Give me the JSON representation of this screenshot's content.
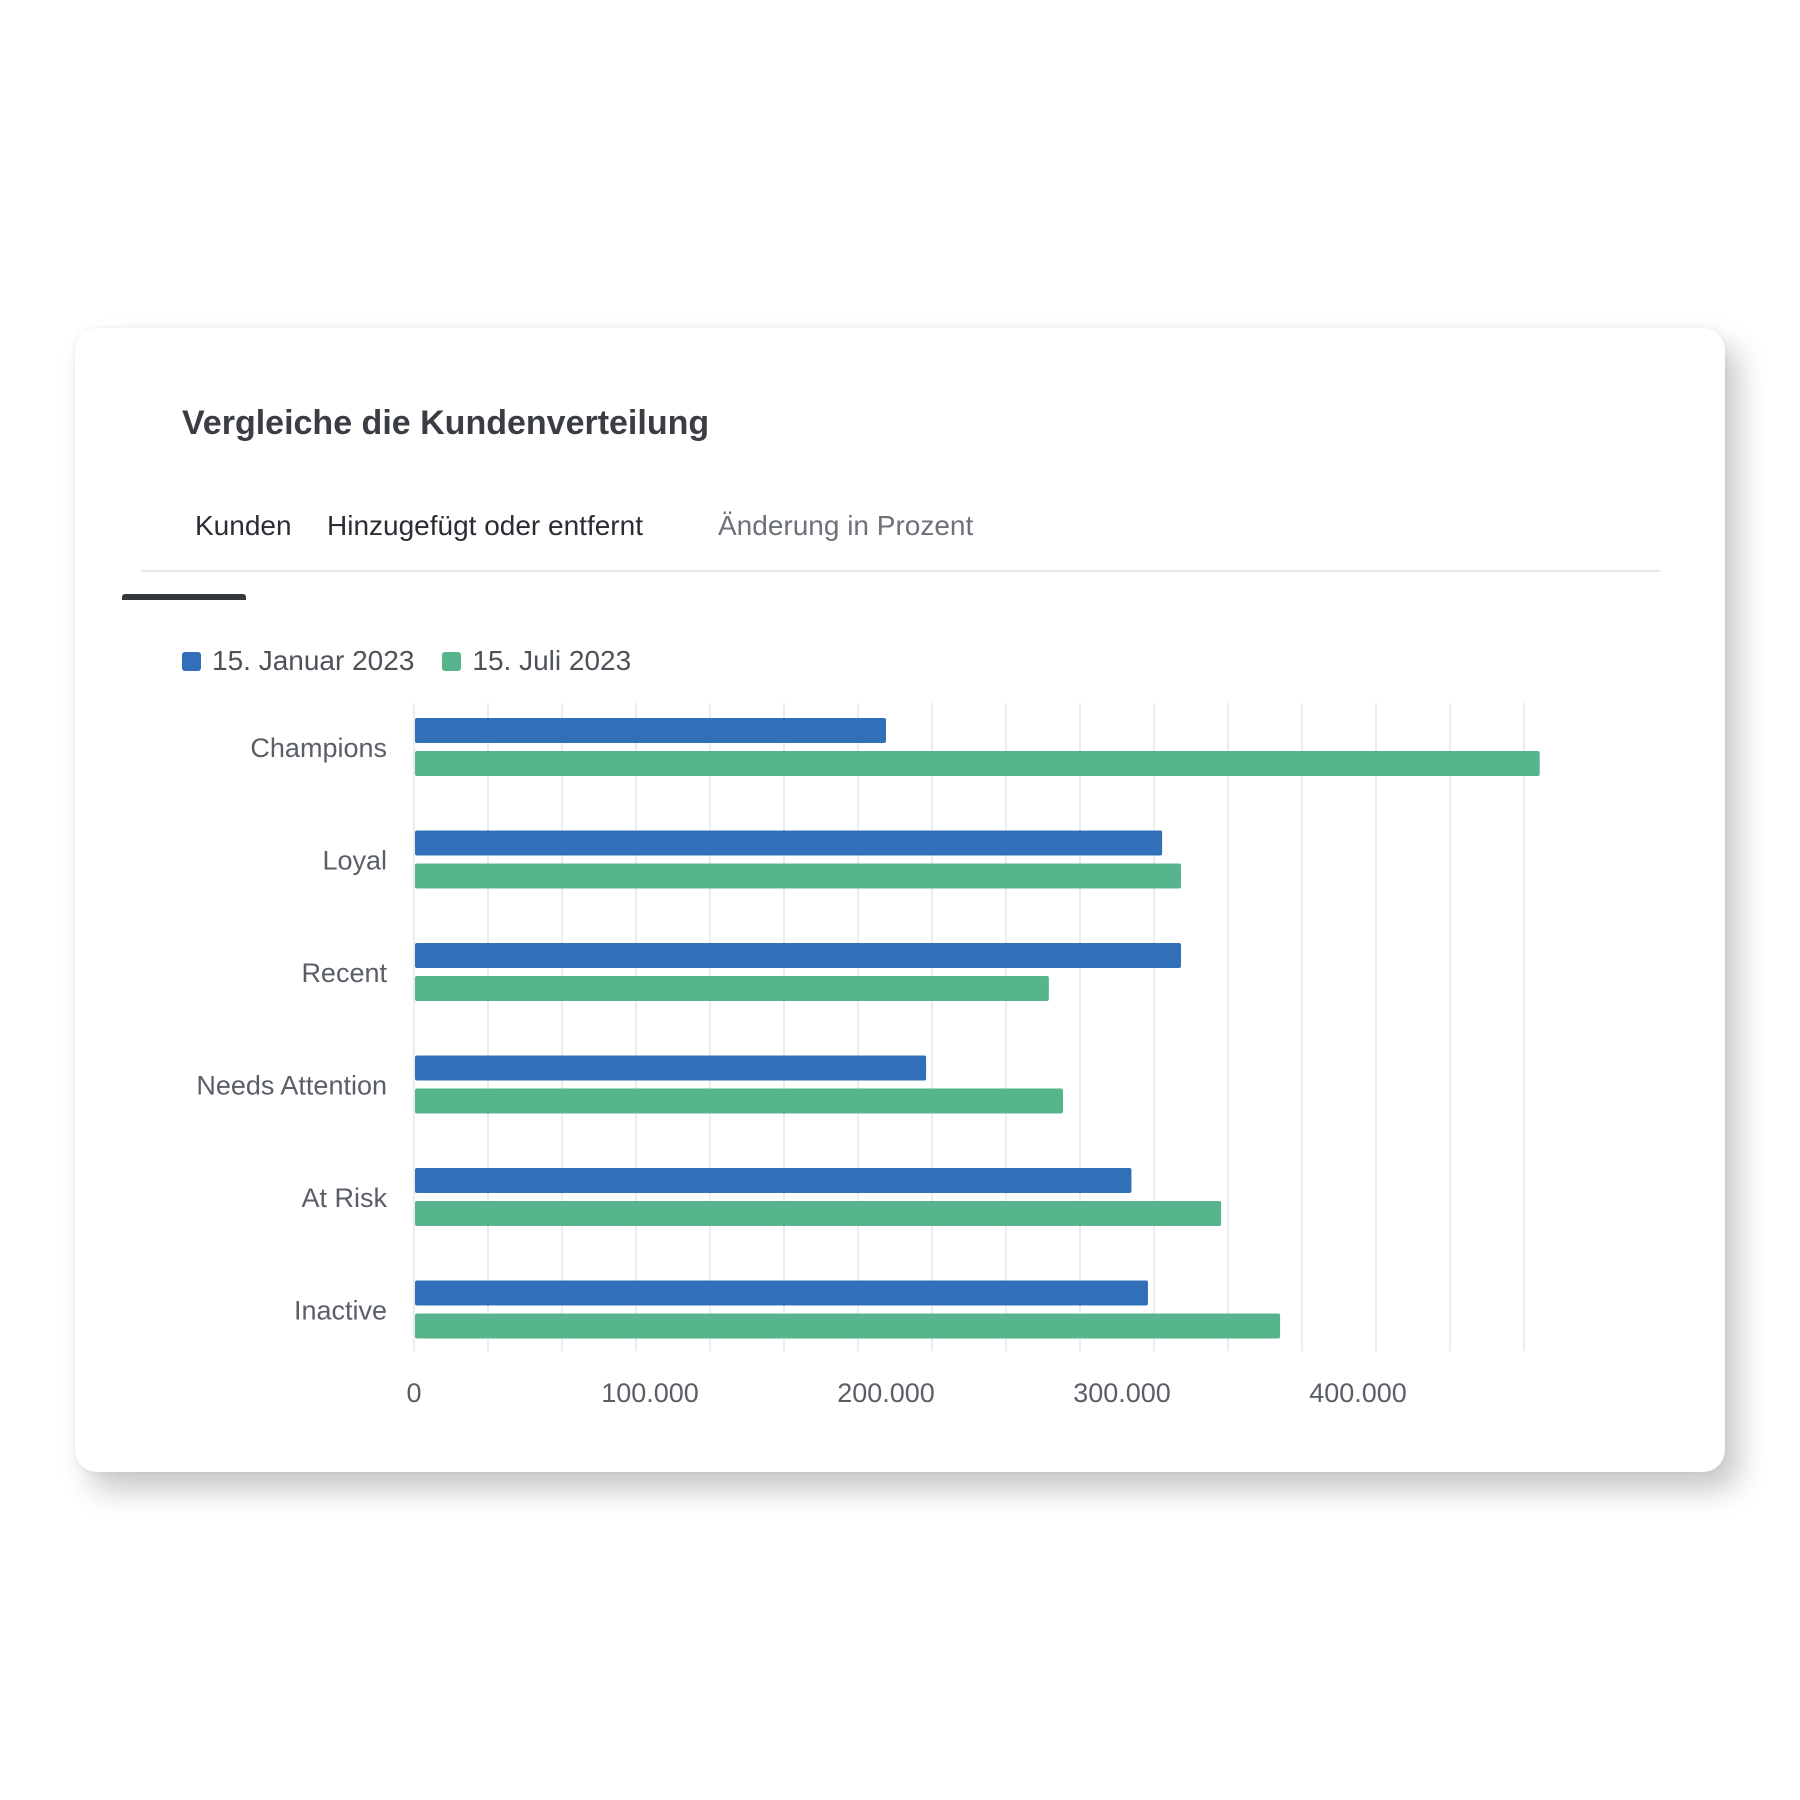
{
  "title": "Vergleiche die Kundenverteilung",
  "tabs": [
    {
      "label": "Kunden",
      "active": true
    },
    {
      "label": "Hinzugefügt oder entfernt",
      "active": false
    },
    {
      "label": "Änderung in Prozent",
      "active": false
    }
  ],
  "colors": {
    "series_1": "#3170b9",
    "series_2": "#57b58d",
    "grid": "#e4e5e7",
    "active_tab_underline": "#33363c"
  },
  "chart_data": {
    "type": "bar",
    "orientation": "horizontal",
    "title": "",
    "xlabel": "",
    "ylabel": "",
    "legend_position": "top-left",
    "grid": true,
    "xlim": [
      0,
      475000
    ],
    "x_ticks": [
      {
        "value": 0,
        "label": "0"
      },
      {
        "value": 100000,
        "label": "100.000"
      },
      {
        "value": 200000,
        "label": "200.000"
      },
      {
        "value": 300000,
        "label": "300.000"
      },
      {
        "value": 400000,
        "label": "400.000"
      }
    ],
    "categories": [
      "Champions",
      "Loyal",
      "Recent",
      "Needs Attention",
      "At Risk",
      "Inactive"
    ],
    "series": [
      {
        "name": "15. Januar 2023",
        "values": [
          200000,
          317000,
          325000,
          217000,
          304000,
          311000
        ]
      },
      {
        "name": "15. Juli 2023",
        "values": [
          477000,
          325000,
          269000,
          275000,
          342000,
          367000
        ]
      }
    ]
  }
}
